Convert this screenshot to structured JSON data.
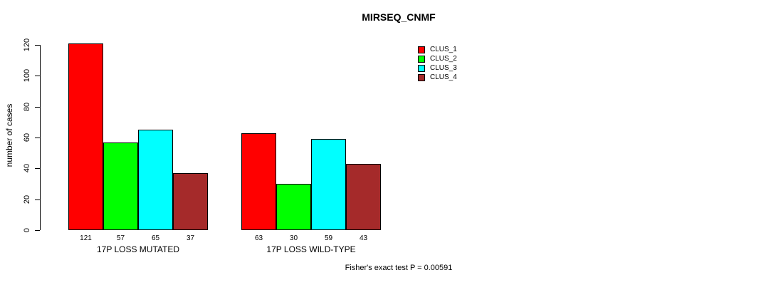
{
  "page": {
    "background": "#FFFFFF"
  },
  "colors": {
    "axis": "#000000",
    "text": "#000000",
    "background": "#FFFFFF"
  },
  "chart_data": {
    "type": "bar",
    "title": "MIRSEQ_CNMF",
    "xlabel": "",
    "ylabel": "number of cases",
    "ylim": [
      0,
      120
    ],
    "yticks": [
      0,
      20,
      40,
      60,
      80,
      100,
      120
    ],
    "grid": false,
    "legend_position": "top-right",
    "bar_value_labels": true,
    "categories": [
      "17P LOSS MUTATED",
      "17P LOSS WILD-TYPE"
    ],
    "series": [
      {
        "name": "CLUS_1",
        "color": "#FF0000",
        "values": [
          121,
          63
        ]
      },
      {
        "name": "CLUS_2",
        "color": "#00FF00",
        "values": [
          57,
          30
        ]
      },
      {
        "name": "CLUS_3",
        "color": "#00FFFF",
        "values": [
          65,
          59
        ]
      },
      {
        "name": "CLUS_4",
        "color": "#A52A2A",
        "values": [
          37,
          43
        ]
      }
    ],
    "annotation": "Fisher's exact test P = 0.00591"
  }
}
